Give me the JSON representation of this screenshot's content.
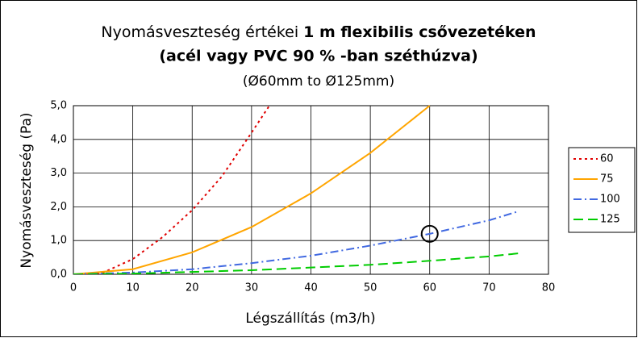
{
  "chart_data": {
    "type": "line",
    "title": "Nyomásveszteség értékei",
    "title_bold": "1 m flexibilis csővezetéken",
    "subtitle": "(acél vagy PVC 90 % -ban széthúzva)",
    "subtitle2": "(Ø60mm to Ø125mm)",
    "x_label": "Légszállítás (m3/h)",
    "y_label": "Nyomásveszteség  (Pa)",
    "xlim": [
      0,
      80
    ],
    "xticks": [
      0,
      10,
      20,
      30,
      40,
      50,
      60,
      70,
      80
    ],
    "ylim": [
      0,
      5
    ],
    "yticks": [
      {
        "value": 0,
        "label": "0,0"
      },
      {
        "value": 1,
        "label": "1,0"
      },
      {
        "value": 2,
        "label": "2,0"
      },
      {
        "value": 3,
        "label": "3,0"
      },
      {
        "value": 4,
        "label": "4,0"
      },
      {
        "value": 5,
        "label": "5,0"
      }
    ],
    "grid": true,
    "legend": "right",
    "highlight": {
      "x": 60,
      "y": 1.2
    },
    "series": [
      {
        "name": "60",
        "color": "#e00000",
        "dash": "3,4",
        "x": [
          2,
          5,
          10,
          15,
          20,
          25,
          30,
          33
        ],
        "values": [
          0,
          0.05,
          0.45,
          1.1,
          1.9,
          2.9,
          4.2,
          5.0
        ]
      },
      {
        "name": "75",
        "color": "#ffa500",
        "dash": "",
        "x": [
          0,
          10,
          20,
          30,
          40,
          50,
          60
        ],
        "values": [
          0,
          0.15,
          0.65,
          1.4,
          2.4,
          3.6,
          5.0
        ]
      },
      {
        "name": "100",
        "color": "#4169e1",
        "dash": "10,4,2,4",
        "x": [
          0,
          10,
          20,
          30,
          40,
          50,
          60,
          70,
          75
        ],
        "values": [
          0,
          0.05,
          0.15,
          0.33,
          0.55,
          0.85,
          1.2,
          1.6,
          1.87
        ]
      },
      {
        "name": "125",
        "color": "#00cc00",
        "dash": "12,6",
        "x": [
          0,
          10,
          20,
          30,
          40,
          50,
          60,
          70,
          75
        ],
        "values": [
          0,
          0.02,
          0.07,
          0.12,
          0.2,
          0.28,
          0.4,
          0.53,
          0.62
        ]
      }
    ]
  }
}
